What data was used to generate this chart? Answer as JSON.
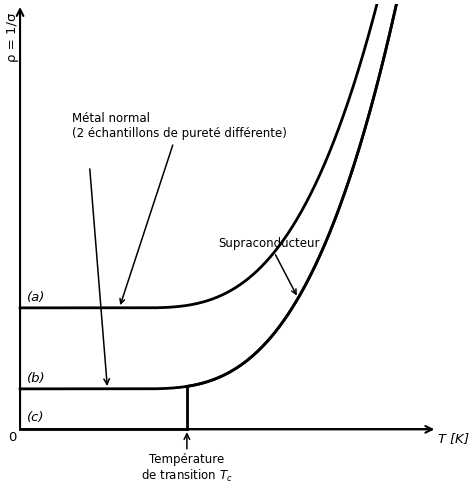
{
  "background_color": "#ffffff",
  "text_color": "#000000",
  "Tc": 0.42,
  "annotation_metal_normal": "Métal normal\n(2 échantillons de pureté différente)",
  "annotation_supraconducteur": "Supraconducteur",
  "label_a": "(a)",
  "label_b": "(b)",
  "label_c": "(c)",
  "label_Tc_line1": "Température",
  "label_Tc_line2": "de transition $T_c$",
  "label_T": "$T$ [K]",
  "ylabel_rot": "ρ = 1/σ",
  "curve_color": "#000000",
  "lw": 2.0,
  "base_a": 0.3,
  "base_b": 0.1,
  "exp_scale": 3.5,
  "exp_power": 3.0,
  "exp_onset": 0.3,
  "xlim": [
    -0.04,
    1.05
  ],
  "ylim": [
    -0.05,
    1.05
  ]
}
